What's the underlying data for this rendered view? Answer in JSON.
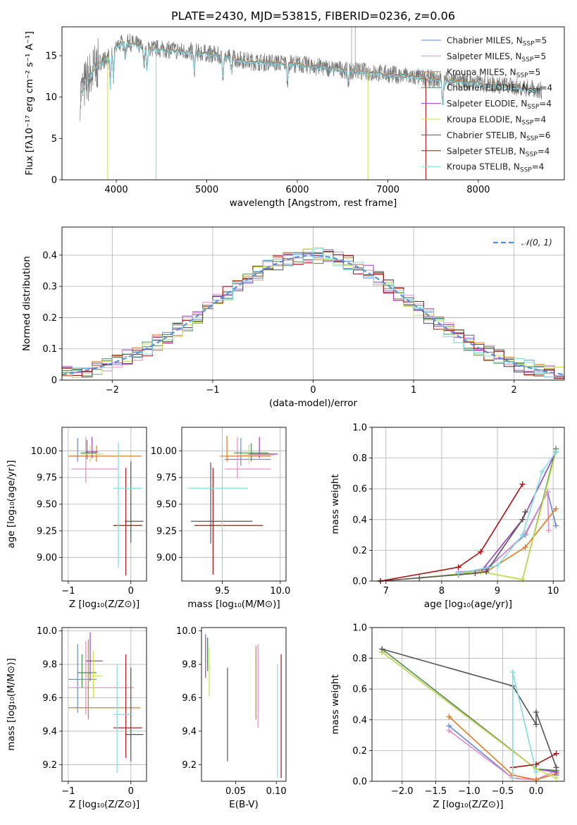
{
  "figure_title": "PLATE=2430, MJD=53815, FIBERID=0236, z=0.06",
  "colors": {
    "Chabrier MILES": "#6688dd",
    "Salpeter MILES": "#e887c8",
    "Kroupa MILES": "#e07a1f",
    "Chabrier ELODIE": "#4c8c4c",
    "Salpeter ELODIE": "#9b3fc0",
    "Kroupa ELODIE": "#c8e050",
    "Chabrier STELIB": "#555555",
    "Salpeter STELIB": "#aa1111",
    "Kroupa STELIB": "#7fdde0",
    "normal": "#5b8fd9",
    "data": "#777777"
  },
  "chart_data": [
    {
      "id": "spectrum",
      "type": "line",
      "title": "PLATE=2430, MJD=53815, FIBERID=0236, z=0.06",
      "xlabel": "wavelength [Angstrom, rest frame]",
      "ylabel": "Flux [fλ10⁻¹⁷ erg cm⁻² s⁻¹ A⁻¹]",
      "xlim": [
        3400,
        8950
      ],
      "ylim": [
        0,
        18.5
      ],
      "xticks": [
        4000,
        5000,
        6000,
        7000,
        8000
      ],
      "yticks": [
        0,
        5,
        10,
        15
      ],
      "continuum": {
        "x": [
          3600,
          3700,
          3800,
          3900,
          4000,
          4100,
          4300,
          4500,
          5000,
          5500,
          6000,
          6500,
          7000,
          7400,
          7800,
          8200,
          8600,
          8700
        ],
        "y": [
          10.3,
          12.5,
          14.0,
          14.8,
          16.2,
          16.8,
          16.0,
          15.8,
          15.3,
          14.3,
          14.0,
          13.3,
          12.8,
          12.3,
          11.9,
          11.5,
          11.0,
          10.8
        ]
      },
      "legend": [
        {
          "label": "Chabrier MILES, N",
          "n": "5"
        },
        {
          "label": "Salpeter MILES, N",
          "n": "5"
        },
        {
          "label": "Kroupa MILES, N",
          "n": "5"
        },
        {
          "label": "Chabrier ELODIE, N",
          "n": "4"
        },
        {
          "label": "Salpeter ELODIE, N",
          "n": "4"
        },
        {
          "label": "Kroupa ELODIE, N",
          "n": "4"
        },
        {
          "label": "Chabrier STELIB, N",
          "n": "6"
        },
        {
          "label": "Salpeter STELIB, N",
          "n": "4"
        },
        {
          "label": "Kroupa STELIB, N",
          "n": "4"
        }
      ],
      "legend_sub": "SSP",
      "legend_loc": "upper right"
    },
    {
      "id": "residuals",
      "type": "line",
      "xlabel": "(data-model)/error",
      "ylabel": "Normed distribution",
      "xlim": [
        -2.5,
        2.5
      ],
      "ylim": [
        0,
        0.49
      ],
      "xticks": [
        -2,
        -1,
        0,
        1,
        2
      ],
      "yticks": [
        0,
        0.1,
        0.2,
        0.3,
        0.4
      ],
      "grid": true,
      "curve_label": "𝒩(0, 1)",
      "legend_loc": "upper right",
      "hist_models": [
        "Chabrier MILES",
        "Salpeter MILES",
        "Kroupa MILES",
        "Chabrier ELODIE",
        "Salpeter ELODIE",
        "Kroupa ELODIE",
        "Chabrier STELIB",
        "Salpeter STELIB",
        "Kroupa STELIB"
      ]
    },
    {
      "id": "z_age",
      "type": "scatter",
      "xlabel": "Z [log₁₀(Z/Z⊙)]",
      "ylabel": "age  [log₁₀(age/yr)]",
      "xlim": [
        -1.1,
        0.25
      ],
      "ylim": [
        8.78,
        10.22
      ],
      "xticks": [
        -1,
        0
      ],
      "yticks": [
        9.0,
        9.25,
        9.5,
        9.75,
        10.0
      ],
      "xtick_labels": [
        "−1",
        "0"
      ],
      "ytick_labels": [
        "9.00",
        "9.25",
        "9.50",
        "9.75",
        "10.00"
      ],
      "grid": true,
      "points": [
        {
          "model": "Chabrier MILES",
          "x": -0.85,
          "y": 9.95,
          "xe": [
            -0.95,
            -0.55
          ],
          "ye": [
            9.9,
            10.12
          ]
        },
        {
          "model": "Salpeter MILES",
          "x": -0.72,
          "y": 9.83,
          "xe": [
            -0.95,
            -0.2
          ],
          "ye": [
            9.7,
            10.13
          ]
        },
        {
          "model": "Kroupa MILES",
          "x": -0.55,
          "y": 9.95,
          "xe": [
            -1.0,
            0.17
          ],
          "ye": [
            9.9,
            10.05
          ]
        },
        {
          "model": "Chabrier ELODIE",
          "x": -0.7,
          "y": 9.98,
          "xe": [
            -0.8,
            -0.55
          ],
          "ye": [
            9.92,
            10.1
          ]
        },
        {
          "model": "Salpeter ELODIE",
          "x": -0.62,
          "y": 9.99,
          "xe": [
            -0.72,
            -0.52
          ],
          "ye": [
            9.93,
            10.13
          ]
        },
        {
          "model": "Kroupa ELODIE",
          "x": -0.65,
          "y": 9.97,
          "xe": [
            -0.8,
            -0.44
          ],
          "ye": [
            9.9,
            10.05
          ]
        },
        {
          "model": "Chabrier STELIB",
          "x": 0.0,
          "y": 9.34,
          "xe": [
            -0.1,
            0.2
          ],
          "ye": [
            9.14,
            9.9
          ]
        },
        {
          "model": "Salpeter STELIB",
          "x": -0.08,
          "y": 9.3,
          "xe": [
            -0.28,
            0.18
          ],
          "ye": [
            8.83,
            9.84
          ]
        },
        {
          "model": "Kroupa STELIB",
          "x": -0.2,
          "y": 9.65,
          "xe": [
            -0.28,
            0.18
          ],
          "ye": [
            8.9,
            10.08
          ]
        }
      ]
    },
    {
      "id": "mass_age",
      "type": "scatter",
      "xlabel": "mass [log₁₀(M/M⊙)]",
      "ylabel": "",
      "xlim": [
        9.15,
        10.05
      ],
      "ylim": [
        8.78,
        10.22
      ],
      "xticks": [
        9.5,
        10.0
      ],
      "yticks": [
        9.0,
        9.25,
        9.5,
        9.75,
        10.0
      ],
      "xtick_labels": [
        "9.5",
        "10.0"
      ],
      "ytick_labels": [
        "9.00",
        "9.25",
        "9.50",
        "9.75",
        "10.00"
      ],
      "grid": true,
      "points": [
        {
          "model": "Chabrier MILES",
          "x": 9.66,
          "y": 9.92,
          "xe": [
            9.52,
            9.92
          ],
          "ye": [
            9.86,
            10.12
          ]
        },
        {
          "model": "Salpeter MILES",
          "x": 9.63,
          "y": 9.83,
          "xe": [
            9.52,
            9.92
          ],
          "ye": [
            9.74,
            10.13
          ]
        },
        {
          "model": "Kroupa MILES",
          "x": 9.54,
          "y": 9.95,
          "xe": [
            9.48,
            9.92
          ],
          "ye": [
            9.9,
            10.14
          ]
        },
        {
          "model": "Chabrier ELODIE",
          "x": 9.75,
          "y": 9.98,
          "xe": [
            9.6,
            9.9
          ],
          "ye": [
            9.9,
            10.07
          ]
        },
        {
          "model": "Salpeter ELODIE",
          "x": 9.82,
          "y": 9.97,
          "xe": [
            9.72,
            9.98
          ],
          "ye": [
            9.93,
            10.13
          ]
        },
        {
          "model": "Kroupa ELODIE",
          "x": 9.73,
          "y": 9.96,
          "xe": [
            9.64,
            9.95
          ],
          "ye": [
            9.88,
            10.06
          ]
        },
        {
          "model": "Chabrier STELIB",
          "x": 9.4,
          "y": 9.34,
          "xe": [
            9.23,
            9.76
          ],
          "ye": [
            9.13,
            9.89
          ]
        },
        {
          "model": "Salpeter STELIB",
          "x": 9.42,
          "y": 9.3,
          "xe": [
            9.26,
            9.85
          ],
          "ye": [
            8.84,
            9.84
          ]
        },
        {
          "model": "Kroupa STELIB",
          "x": 9.5,
          "y": 9.65,
          "xe": [
            9.2,
            9.72
          ],
          "ye": [
            8.9,
            10.07
          ]
        }
      ]
    },
    {
      "id": "age_weight",
      "type": "line",
      "xlabel": "age  [log₁₀(age/yr)]",
      "ylabel": "mass weight",
      "xlim": [
        6.75,
        10.2
      ],
      "ylim": [
        0,
        1.0
      ],
      "xticks": [
        7,
        8,
        9,
        10
      ],
      "yticks": [
        0,
        0.2,
        0.4,
        0.6,
        0.8,
        1.0
      ],
      "xtick_labels": [
        "7",
        "8",
        "9",
        "10"
      ],
      "ytick_labels": [
        "0.0",
        "0.2",
        "0.4",
        "0.6",
        "0.8",
        "1.0"
      ],
      "grid": true,
      "series": [
        {
          "model": "Chabrier MILES",
          "x": [
            8.3,
            8.8,
            9.5,
            9.9,
            10.05
          ],
          "y": [
            0.05,
            0.08,
            0.3,
            0.58,
            0.36
          ]
        },
        {
          "model": "Salpeter MILES",
          "x": [
            8.3,
            8.8,
            9.5,
            9.9,
            9.92
          ],
          "y": [
            0.06,
            0.07,
            0.31,
            0.58,
            0.33
          ]
        },
        {
          "model": "Kroupa MILES",
          "x": [
            8.3,
            8.8,
            9.5,
            10.05
          ],
          "y": [
            0.04,
            0.06,
            0.22,
            0.47
          ]
        },
        {
          "model": "Chabrier ELODIE",
          "x": [
            7.6,
            8.7,
            9.45,
            10.05
          ],
          "y": [
            0.02,
            0.06,
            0.01,
            0.86
          ]
        },
        {
          "model": "Salpeter ELODIE",
          "x": [
            7.6,
            8.7,
            9.45,
            10.05
          ],
          "y": [
            0.02,
            0.06,
            0.4,
            0.84
          ]
        },
        {
          "model": "Kroupa ELODIE",
          "x": [
            7.6,
            8.7,
            9.45,
            10.05
          ],
          "y": [
            0.02,
            0.06,
            0.01,
            0.84
          ]
        },
        {
          "model": "Chabrier STELIB",
          "x": [
            6.9,
            7.6,
            8.6,
            8.8,
            9.45,
            9.5
          ],
          "y": [
            0.0,
            0.02,
            0.05,
            0.06,
            0.4,
            0.45
          ]
        },
        {
          "model": "Salpeter STELIB",
          "x": [
            6.9,
            8.3,
            8.7,
            9.45
          ],
          "y": [
            0.0,
            0.09,
            0.19,
            0.63
          ]
        },
        {
          "model": "Kroupa STELIB",
          "x": [
            8.3,
            9.0,
            9.45,
            9.8,
            10.05
          ],
          "y": [
            0.05,
            0.1,
            0.3,
            0.71,
            0.84
          ]
        }
      ]
    },
    {
      "id": "z_mass",
      "type": "scatter",
      "xlabel": "Z [log₁₀(Z/Z⊙)]",
      "ylabel": "mass [log₁₀(M/M⊙)]",
      "xlim": [
        -1.1,
        0.25
      ],
      "ylim": [
        9.1,
        10.02
      ],
      "xticks": [
        -1,
        0
      ],
      "yticks": [
        9.2,
        9.4,
        9.6,
        9.8,
        10.0
      ],
      "xtick_labels": [
        "−1",
        "0"
      ],
      "ytick_labels": [
        "9.2",
        "9.4",
        "9.6",
        "9.8",
        "10.0"
      ],
      "grid": true,
      "points": [
        {
          "model": "Chabrier MILES",
          "x": -0.85,
          "y": 9.71,
          "xe": [
            -1.0,
            -0.55
          ],
          "ye": [
            9.51,
            9.92
          ]
        },
        {
          "model": "Salpeter MILES",
          "x": -0.72,
          "y": 9.66,
          "xe": [
            -1.0,
            0.05
          ],
          "ye": [
            9.5,
            9.94
          ]
        },
        {
          "model": "Kroupa MILES",
          "x": -0.68,
          "y": 9.54,
          "xe": [
            -1.0,
            0.15
          ],
          "ye": [
            9.47,
            9.95
          ]
        },
        {
          "model": "Chabrier ELODIE",
          "x": -0.78,
          "y": 9.75,
          "xe": [
            -0.85,
            -0.55
          ],
          "ye": [
            9.66,
            9.86
          ]
        },
        {
          "model": "Salpeter ELODIE",
          "x": -0.65,
          "y": 9.82,
          "xe": [
            -0.72,
            -0.45
          ],
          "ye": [
            9.7,
            9.99
          ]
        },
        {
          "model": "Kroupa ELODIE",
          "x": -0.6,
          "y": 9.73,
          "xe": [
            -0.72,
            -0.45
          ],
          "ye": [
            9.6,
            9.88
          ]
        },
        {
          "model": "Chabrier STELIB",
          "x": 0.0,
          "y": 9.38,
          "xe": [
            -0.08,
            0.2
          ],
          "ye": [
            9.22,
            9.78
          ]
        },
        {
          "model": "Salpeter STELIB",
          "x": -0.08,
          "y": 9.42,
          "xe": [
            -0.28,
            0.18
          ],
          "ye": [
            9.24,
            9.86
          ]
        },
        {
          "model": "Kroupa STELIB",
          "x": -0.22,
          "y": 9.5,
          "xe": [
            -0.28,
            0.0
          ],
          "ye": [
            9.15,
            9.8
          ]
        }
      ]
    },
    {
      "id": "ebv_mass",
      "type": "scatter",
      "xlabel": "E(B-V)",
      "ylabel": "",
      "xlim": [
        0.008,
        0.112
      ],
      "ylim": [
        9.1,
        10.02
      ],
      "xticks": [
        0.05,
        0.1
      ],
      "yticks": [
        9.2,
        9.4,
        9.6,
        9.8,
        10.0
      ],
      "xtick_labels": [
        "0.05",
        "0.10"
      ],
      "ytick_labels": [
        "9.2",
        "9.4",
        "9.6",
        "9.8",
        "10.0"
      ],
      "grid": false,
      "points": [
        {
          "model": "Chabrier MILES",
          "x": 0.0155,
          "y": 9.86,
          "xe": [
            0.0155,
            0.0155
          ],
          "ye": [
            9.76,
            9.96
          ]
        },
        {
          "model": "Salpeter MILES",
          "x": 0.0775,
          "y": 9.64,
          "xe": [
            0.0775,
            0.0775
          ],
          "ye": [
            9.42,
            9.92
          ]
        },
        {
          "model": "Kroupa MILES",
          "x": 0.075,
          "y": 9.72,
          "xe": [
            0.075,
            0.075
          ],
          "ye": [
            9.47,
            9.91
          ]
        },
        {
          "model": "Chabrier ELODIE",
          "x": 0.0155,
          "y": 9.86,
          "xe": [
            0.0155,
            0.0155
          ],
          "ye": [
            9.76,
            9.96
          ]
        },
        {
          "model": "Salpeter ELODIE",
          "x": 0.013,
          "y": 9.86,
          "xe": [
            0.013,
            0.013
          ],
          "ye": [
            9.72,
            9.98
          ]
        },
        {
          "model": "Kroupa ELODIE",
          "x": 0.0175,
          "y": 9.76,
          "xe": [
            0.0175,
            0.0175
          ],
          "ye": [
            9.61,
            9.9
          ]
        },
        {
          "model": "Chabrier STELIB",
          "x": 0.04,
          "y": 9.5,
          "xe": [
            0.04,
            0.04
          ],
          "ye": [
            9.22,
            9.78
          ]
        },
        {
          "model": "Salpeter STELIB",
          "x": 0.106,
          "y": 9.5,
          "xe": [
            0.106,
            0.106
          ],
          "ye": [
            9.12,
            9.86
          ]
        },
        {
          "model": "Kroupa STELIB",
          "x": 0.1015,
          "y": 9.5,
          "xe": [
            0.1015,
            0.1015
          ],
          "ye": [
            9.12,
            9.8
          ]
        }
      ]
    },
    {
      "id": "z_weight",
      "type": "line",
      "xlabel": "Z [log₁₀(Z/Z⊙)]",
      "ylabel": "mass weight",
      "xlim": [
        -2.45,
        0.42
      ],
      "ylim": [
        0,
        1.0
      ],
      "xticks": [
        -2.0,
        -1.5,
        -1.0,
        -0.5,
        0.0
      ],
      "yticks": [
        0,
        0.2,
        0.4,
        0.6,
        0.8,
        1.0
      ],
      "xtick_labels": [
        "−2.0",
        "−1.5",
        "−1.0",
        "−0.5",
        "0.0"
      ],
      "ytick_labels": [
        "0.0",
        "0.2",
        "0.4",
        "0.6",
        "0.8",
        "1.0"
      ],
      "grid": true,
      "series": [
        {
          "model": "Chabrier MILES",
          "x": [
            -1.3,
            -0.35,
            0.0,
            0.3,
            0.3
          ],
          "y": [
            0.36,
            0.02,
            0.01,
            0.07,
            0.04
          ]
        },
        {
          "model": "Salpeter MILES",
          "x": [
            -1.3,
            -0.35,
            0.0,
            0.3
          ],
          "y": [
            0.33,
            0.02,
            0.01,
            0.07
          ]
        },
        {
          "model": "Kroupa MILES",
          "x": [
            -1.3,
            -0.35,
            0.0,
            0.3
          ],
          "y": [
            0.42,
            0.04,
            0.01,
            0.05
          ]
        },
        {
          "model": "Chabrier ELODIE",
          "x": [
            -2.3,
            0.0,
            0.3
          ],
          "y": [
            0.86,
            0.08,
            0.07
          ]
        },
        {
          "model": "Salpeter ELODIE",
          "x": [
            -2.3,
            0.0,
            0.3
          ],
          "y": [
            0.84,
            0.08,
            0.06
          ]
        },
        {
          "model": "Kroupa ELODIE",
          "x": [
            -2.3,
            0.0,
            0.3
          ],
          "y": [
            0.84,
            0.08,
            0.02
          ]
        },
        {
          "model": "Chabrier STELIB",
          "x": [
            -2.3,
            -0.35,
            0.0,
            0.0,
            0.3
          ],
          "y": [
            0.86,
            0.62,
            0.37,
            0.45,
            0.09
          ]
        },
        {
          "model": "Salpeter STELIB",
          "x": [
            -0.35,
            0.0,
            0.3
          ],
          "y": [
            0.09,
            0.11,
            0.18
          ]
        },
        {
          "model": "Kroupa STELIB",
          "x": [
            -0.35,
            -0.35,
            0.0
          ],
          "y": [
            0.02,
            0.71,
            0.06
          ]
        }
      ]
    }
  ]
}
